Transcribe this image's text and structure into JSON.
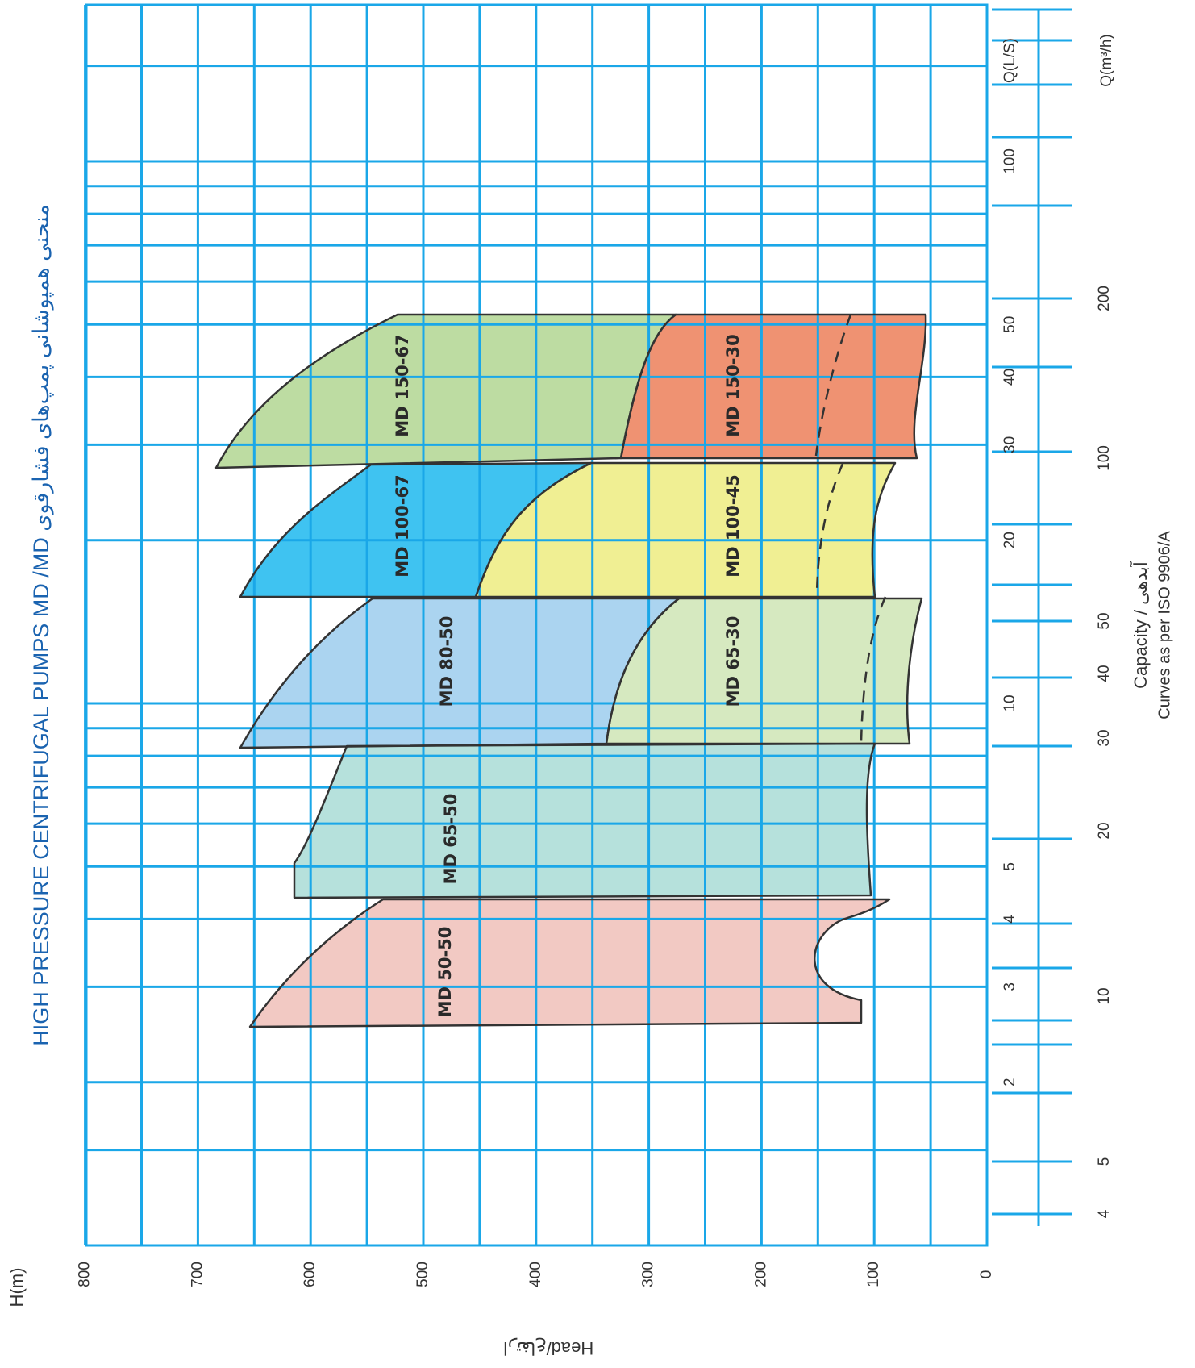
{
  "chart_data": {
    "type": "area",
    "title": "HIGH PRESSURE CENTRIFUGAL PUMPS MD  /MD منحنی همپوشانی پمپ‌های فشارقوی",
    "ylabel": "H(m)",
    "ylabel_secondary": "Head/ارتفاع",
    "xlabel": "Capacity / آبدهی",
    "note": "Curves as per ISO 9906/A",
    "x_scale": "log",
    "x_unit_ls": "Q(L/S)",
    "x_unit_m3h": "Q(m³/h)",
    "xlim_ls": [
      1,
      150
    ],
    "ylim": [
      0,
      800
    ],
    "y_ticks": [
      "800",
      "700",
      "600",
      "500",
      "400",
      "300",
      "200",
      "100",
      "0"
    ],
    "x_ticks_ls": [
      "2",
      "3",
      "4",
      "5",
      "10",
      "20",
      "30",
      "40",
      "50",
      "100"
    ],
    "x_ticks_m3h": [
      "4",
      "5",
      "10",
      "20",
      "30",
      "40",
      "50",
      "100",
      "200"
    ],
    "grid": true,
    "colors": {
      "grid": "#1aa7e8",
      "title": "#1a63b0",
      "outline": "#333333"
    },
    "series": [
      {
        "name": "MD 50-50",
        "color": "#f2c9c3"
      },
      {
        "name": "MD 65-50",
        "color": "#b6e1dc"
      },
      {
        "name": "MD 80-50",
        "color": "#abd4f0"
      },
      {
        "name": "MD 65-30",
        "color": "#d6e9c0"
      },
      {
        "name": "MD 100-67",
        "color": "#3fc3f1"
      },
      {
        "name": "MD 100-45",
        "color": "#f0ef93"
      },
      {
        "name": "MD 150-67",
        "color": "#bddca2"
      },
      {
        "name": "MD 150-30",
        "color": "#ef9272"
      }
    ]
  }
}
